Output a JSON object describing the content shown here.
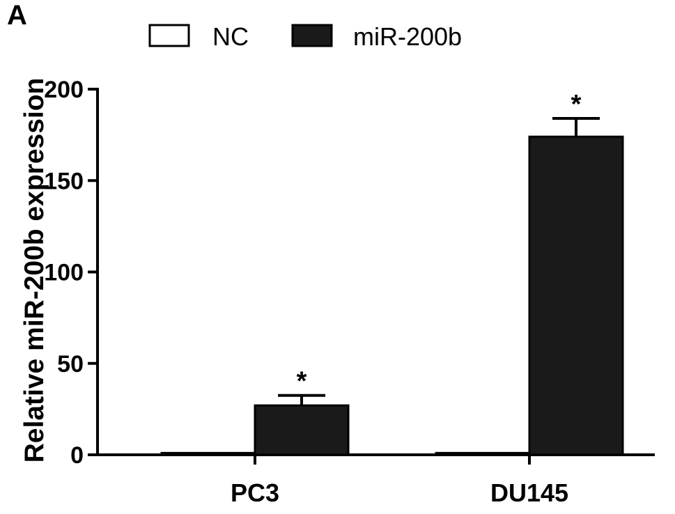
{
  "figure": {
    "panel_label": "A"
  },
  "colors": {
    "nc_fill": "#ffffff",
    "mir_fill": "#1a1a1a",
    "stroke": "#000000"
  },
  "chart_data": {
    "type": "bar",
    "categories": [
      "PC3",
      "DU145"
    ],
    "series": [
      {
        "name": "NC",
        "values": [
          1,
          1
        ],
        "errors": [
          0,
          0
        ],
        "color": "#ffffff",
        "significance": [
          "",
          ""
        ]
      },
      {
        "name": "miR-200b",
        "values": [
          27,
          174
        ],
        "errors": [
          5.5,
          10
        ],
        "color": "#1a1a1a",
        "significance": [
          "*",
          "*"
        ]
      }
    ],
    "title": "",
    "xlabel": "",
    "ylabel": "Relative miR-200b expression",
    "ylim": [
      0,
      200
    ],
    "yticks": [
      0,
      50,
      100,
      150,
      200
    ],
    "grid": false,
    "legend_position": "top"
  }
}
